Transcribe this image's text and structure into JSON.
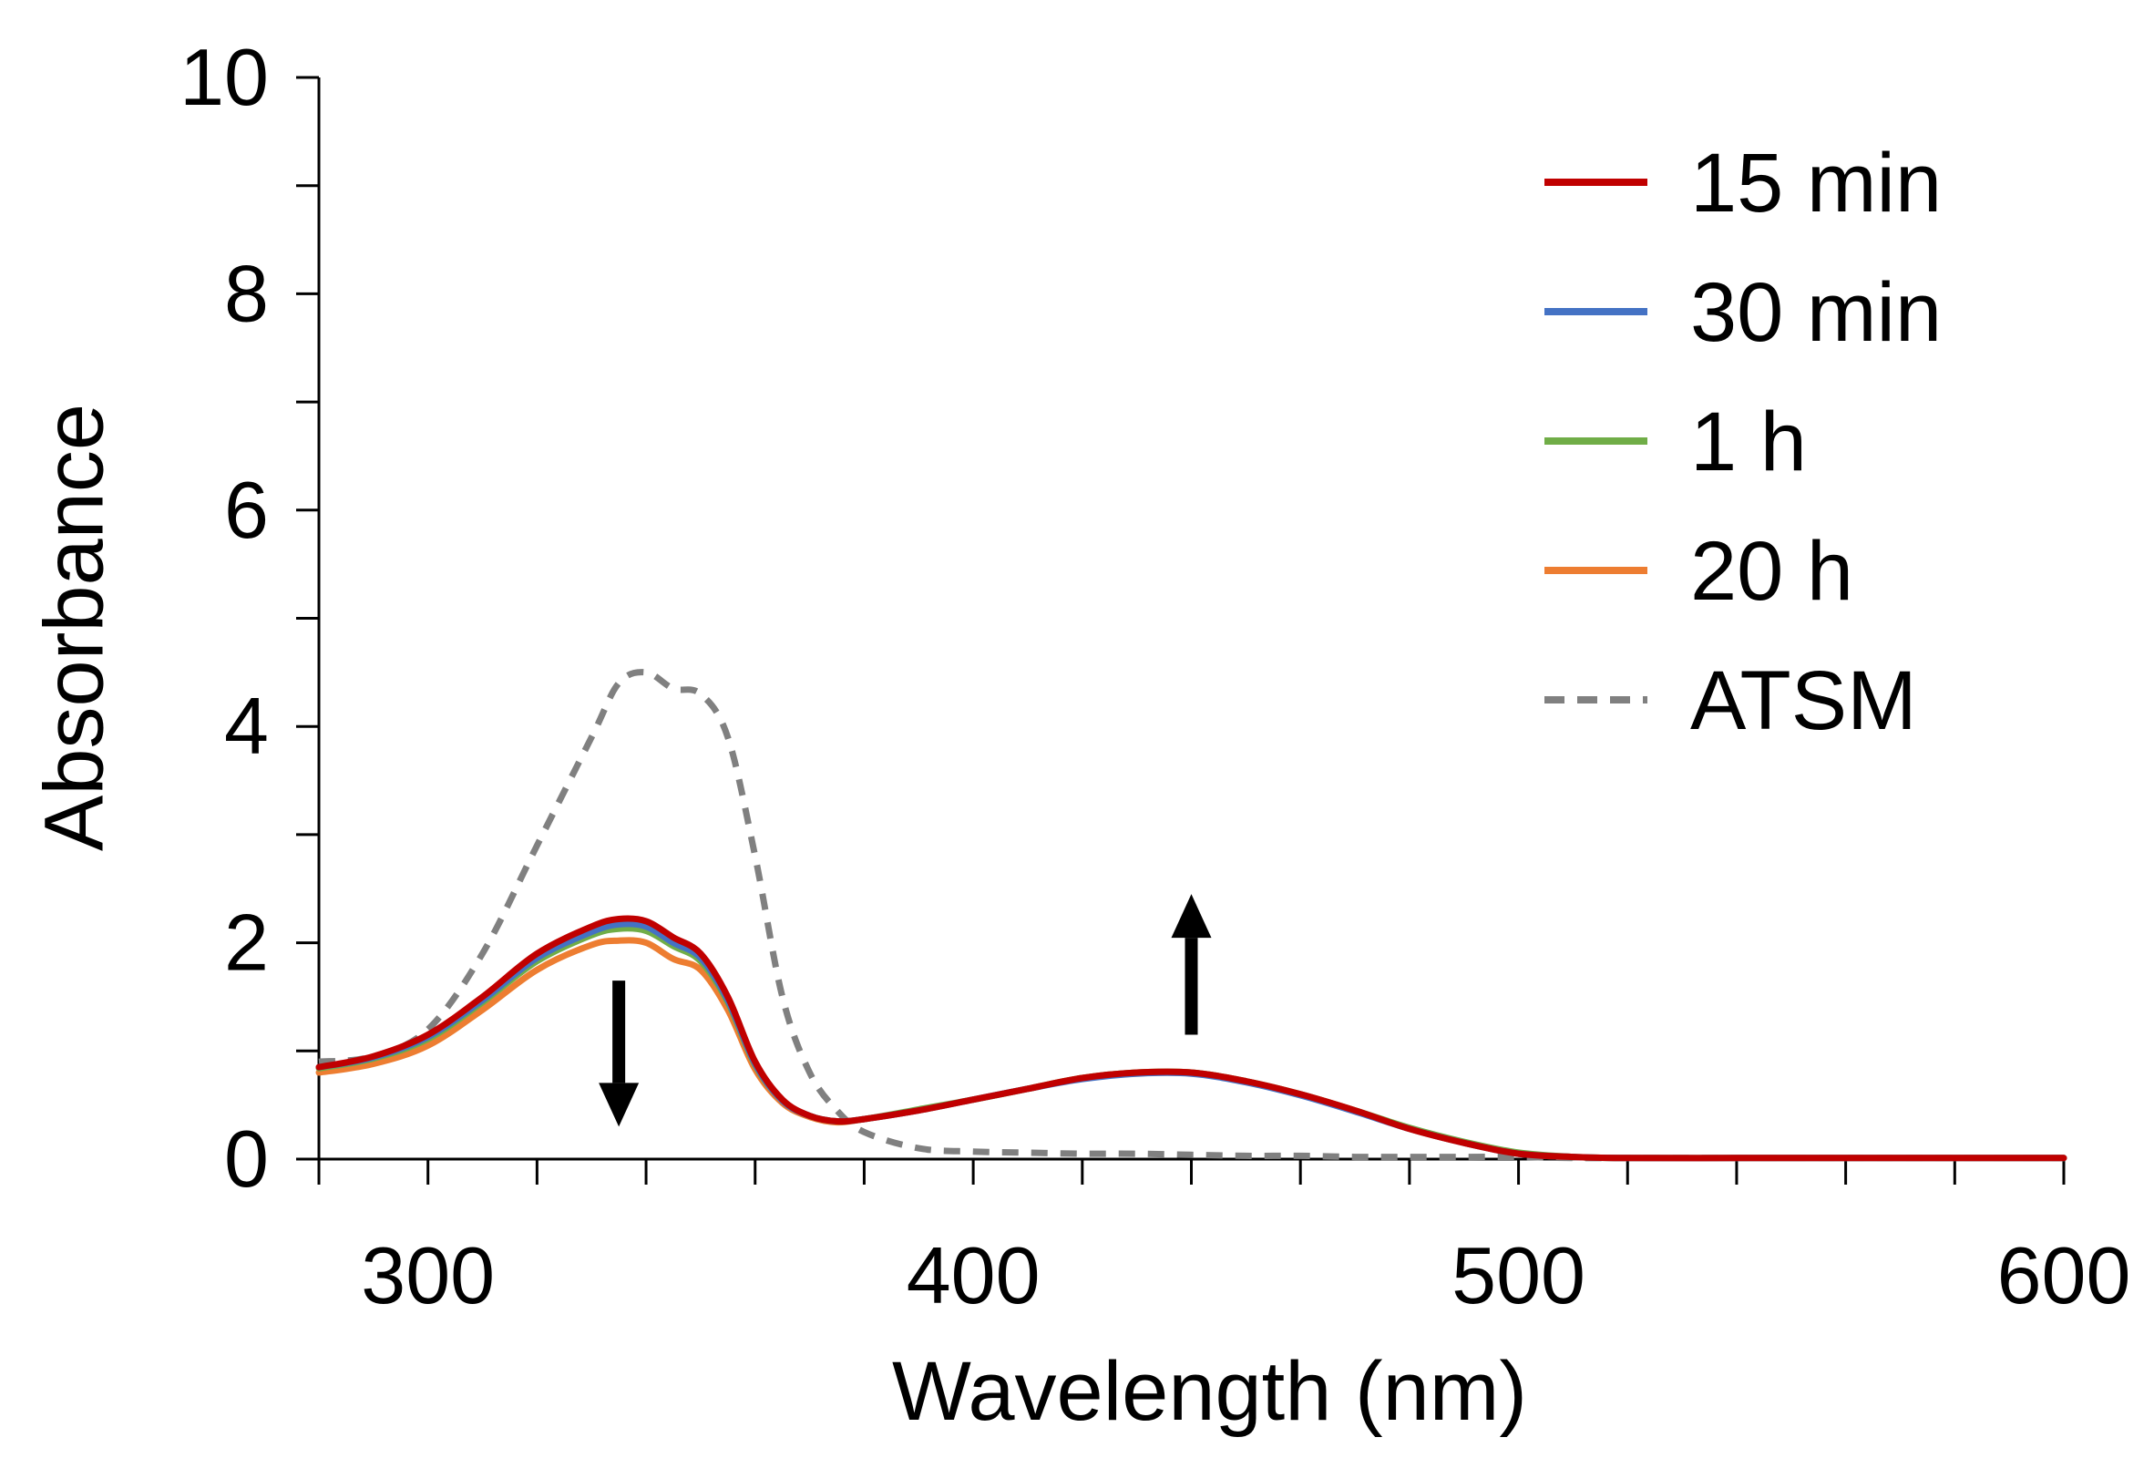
{
  "chart_data": {
    "type": "line",
    "title": "",
    "xlabel": "Wavelength (nm)",
    "ylabel": "Absorbance",
    "xlim": [
      280,
      600
    ],
    "ylim": [
      0,
      10
    ],
    "x_ticks": [
      300,
      400,
      500,
      600
    ],
    "x_minor_step": 20,
    "y_ticks": [
      0,
      2,
      4,
      6,
      8,
      10
    ],
    "y_minor_step": 1,
    "grid": false,
    "legend_position": "top-right",
    "x": [
      280,
      290,
      300,
      310,
      320,
      330,
      335,
      340,
      345,
      350,
      355,
      360,
      365,
      370,
      375,
      380,
      390,
      400,
      410,
      420,
      430,
      440,
      450,
      460,
      470,
      480,
      490,
      500,
      510,
      520,
      540,
      560,
      580,
      600
    ],
    "series": [
      {
        "name": "15 min",
        "color": "#C00000",
        "dash": "solid",
        "values": [
          0.85,
          0.95,
          1.15,
          1.5,
          1.9,
          2.15,
          2.22,
          2.2,
          2.05,
          1.9,
          1.5,
          0.9,
          0.55,
          0.4,
          0.35,
          0.37,
          0.45,
          0.55,
          0.65,
          0.75,
          0.8,
          0.8,
          0.72,
          0.6,
          0.45,
          0.28,
          0.15,
          0.05,
          0.02,
          0.01,
          0.01,
          0.01,
          0.01,
          0.01
        ]
      },
      {
        "name": "30 min",
        "color": "#4472C4",
        "dash": "solid",
        "values": [
          0.85,
          0.94,
          1.13,
          1.47,
          1.86,
          2.1,
          2.17,
          2.15,
          2.0,
          1.86,
          1.47,
          0.88,
          0.54,
          0.4,
          0.35,
          0.37,
          0.45,
          0.55,
          0.65,
          0.74,
          0.79,
          0.79,
          0.71,
          0.59,
          0.44,
          0.28,
          0.15,
          0.05,
          0.02,
          0.01,
          0.01,
          0.01,
          0.01,
          0.01
        ]
      },
      {
        "name": "1 h",
        "color": "#70AD47",
        "dash": "solid",
        "values": [
          0.84,
          0.93,
          1.11,
          1.45,
          1.83,
          2.07,
          2.13,
          2.11,
          1.97,
          1.83,
          1.45,
          0.87,
          0.54,
          0.4,
          0.35,
          0.37,
          0.46,
          0.55,
          0.65,
          0.75,
          0.8,
          0.8,
          0.72,
          0.6,
          0.45,
          0.29,
          0.16,
          0.06,
          0.02,
          0.01,
          0.01,
          0.01,
          0.01,
          0.01
        ]
      },
      {
        "name": "20 h",
        "color": "#ED7D31",
        "dash": "solid",
        "values": [
          0.8,
          0.88,
          1.05,
          1.38,
          1.75,
          1.98,
          2.02,
          2.0,
          1.85,
          1.75,
          1.38,
          0.83,
          0.52,
          0.39,
          0.34,
          0.37,
          0.45,
          0.55,
          0.65,
          0.75,
          0.8,
          0.8,
          0.72,
          0.6,
          0.45,
          0.28,
          0.15,
          0.05,
          0.02,
          0.01,
          0.01,
          0.01,
          0.01,
          0.01
        ]
      },
      {
        "name": "ATSM",
        "color": "#808080",
        "dash": "dashed",
        "values": [
          0.9,
          0.95,
          1.2,
          1.9,
          2.9,
          3.9,
          4.4,
          4.5,
          4.35,
          4.3,
          3.9,
          2.8,
          1.5,
          0.8,
          0.45,
          0.25,
          0.1,
          0.07,
          0.06,
          0.05,
          0.05,
          0.04,
          0.03,
          0.03,
          0.02,
          0.02,
          0.02,
          0.02,
          0.01,
          0.01,
          0.01,
          0.01,
          0.01,
          0.01
        ]
      }
    ],
    "annotations": [
      {
        "type": "arrow",
        "direction": "down",
        "x": 335,
        "y_from": 1.65,
        "y_to": 0.3
      },
      {
        "type": "arrow",
        "direction": "up",
        "x": 440,
        "y_from": 1.15,
        "y_to": 2.45
      }
    ]
  }
}
